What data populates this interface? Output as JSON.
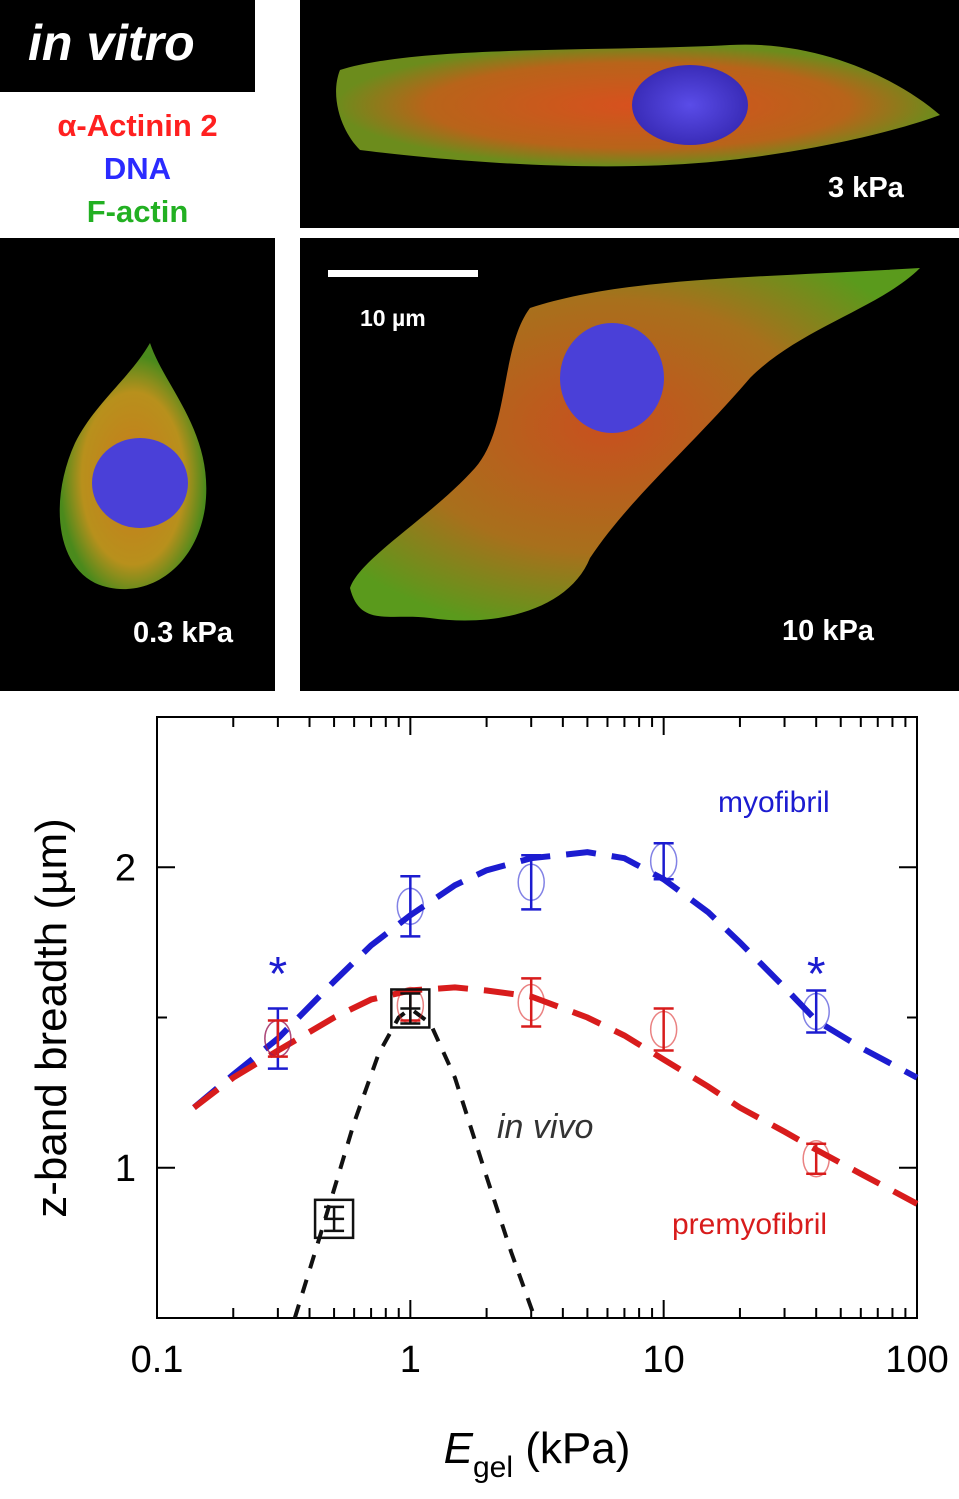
{
  "image_panel": {
    "title": "in vitro",
    "stain_legend": [
      {
        "label": "α-Actinin 2",
        "color": "#ff2020"
      },
      {
        "label": "DNA",
        "color": "#2b2bff"
      },
      {
        "label": "F-actin",
        "color": "#22b022"
      }
    ],
    "stiffness_labels": {
      "top_right": "3 kPa",
      "bottom_left": "0.3 kPa",
      "bottom_right": "10 kPa"
    },
    "scale_bar_label": "10 µm"
  },
  "chart_data": {
    "type": "scatter",
    "x_scale": "log",
    "xlim": [
      0.1,
      100
    ],
    "ylim": [
      0.5,
      2.5
    ],
    "x_ticks": [
      "0.1",
      "1",
      "10",
      "100"
    ],
    "y_ticks": [
      "1",
      "2"
    ],
    "xlabel_main": "E",
    "xlabel_sub": "gel",
    "xlabel_unit": " (kPa)",
    "ylabel": "z-band breadth (µm)",
    "series": [
      {
        "name": "myofibril",
        "color": "#1c1cd0",
        "marker": "circle",
        "x": [
          0.3,
          1,
          3,
          10,
          40
        ],
        "y": [
          1.43,
          1.87,
          1.95,
          2.02,
          1.52
        ],
        "err": [
          0.1,
          0.1,
          0.09,
          0.06,
          0.07
        ],
        "fit_x": [
          0.14,
          0.2,
          0.3,
          0.5,
          0.7,
          1,
          1.5,
          2,
          3,
          5,
          7,
          10,
          15,
          20,
          30,
          40,
          60,
          100
        ],
        "fit_y": [
          1.2,
          1.31,
          1.43,
          1.62,
          1.74,
          1.84,
          1.94,
          1.99,
          2.03,
          2.05,
          2.03,
          1.96,
          1.85,
          1.75,
          1.6,
          1.49,
          1.4,
          1.3
        ]
      },
      {
        "name": "premyofibril",
        "color": "#d81c1c",
        "marker": "circle",
        "x": [
          0.3,
          1,
          3,
          10,
          40
        ],
        "y": [
          1.43,
          1.54,
          1.55,
          1.46,
          1.03
        ],
        "err": [
          0.06,
          0.05,
          0.08,
          0.07,
          0.05
        ],
        "fit_x": [
          0.14,
          0.2,
          0.3,
          0.5,
          0.7,
          1,
          1.5,
          2,
          3,
          5,
          7,
          10,
          15,
          20,
          30,
          40,
          60,
          100
        ],
        "fit_y": [
          1.2,
          1.3,
          1.39,
          1.5,
          1.56,
          1.59,
          1.6,
          1.59,
          1.57,
          1.5,
          1.44,
          1.36,
          1.27,
          1.2,
          1.12,
          1.06,
          0.98,
          0.88
        ]
      },
      {
        "name": "in vivo",
        "color": "#111111",
        "marker": "square",
        "x": [
          0.5,
          1
        ],
        "y": [
          0.83,
          1.53
        ],
        "err": [
          0.04,
          0.05
        ],
        "fit_x": [
          0.35,
          0.45,
          0.6,
          0.75,
          0.9,
          1,
          1.2,
          1.5,
          2,
          2.5,
          3.1
        ],
        "fit_y": [
          0.5,
          0.8,
          1.15,
          1.38,
          1.5,
          1.53,
          1.48,
          1.3,
          0.97,
          0.72,
          0.5
        ]
      }
    ],
    "asterisk_x": [
      0.3,
      40
    ],
    "asterisk_mark": "*",
    "asterisk_color": "#1c1cd0"
  }
}
